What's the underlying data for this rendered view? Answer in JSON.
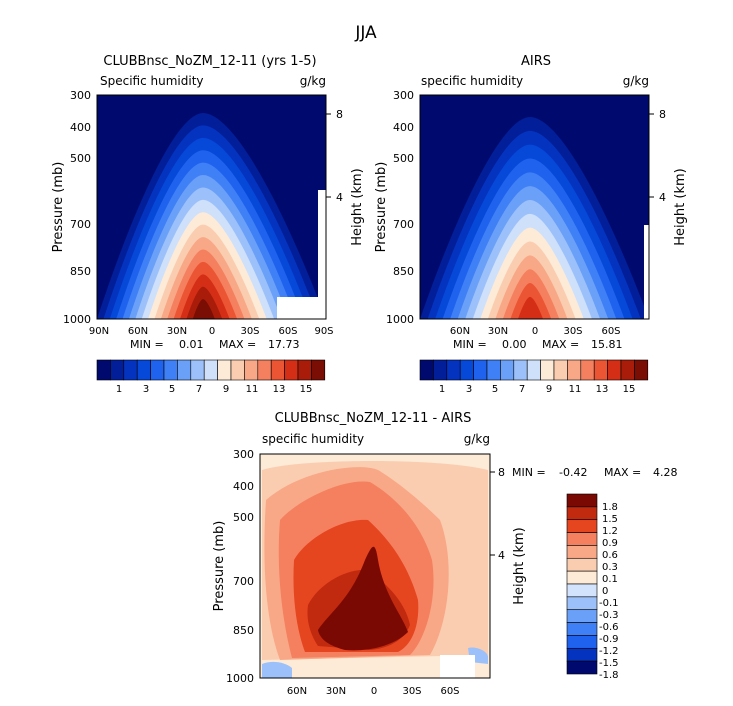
{
  "page": {
    "title": "JJA"
  },
  "colors": {
    "abs_scale": [
      "#000a6e",
      "#021e98",
      "#0433bf",
      "#0648d8",
      "#1f62ee",
      "#3f80f6",
      "#6ba0f8",
      "#9cc1fa",
      "#cfe0fb",
      "#fdebd7",
      "#fbcdb0",
      "#f8a886",
      "#f4805f",
      "#ec5534",
      "#d42f16",
      "#a91c0a",
      "#7a0d04"
    ],
    "diff_scale": [
      "#000a6e",
      "#0433bf",
      "#1f62ee",
      "#3f80f6",
      "#6ba0f8",
      "#9cc1fa",
      "#d2e3fb",
      "#fdebd7",
      "#fbcdb0",
      "#f8a886",
      "#f4805f",
      "#e5451f",
      "#c12a0e",
      "#7a0904"
    ]
  },
  "chart_data": [
    {
      "type": "heatmap",
      "title": "CLUBBnsc_NoZM_12-11 (yrs 1-5)",
      "subtitle_left": "Specific humidity",
      "units": "g/kg",
      "ylabel": "Pressure (mb)",
      "ylabel_right": "Height (km)",
      "x_ticks": [
        "90N",
        "60N",
        "30N",
        "0",
        "30S",
        "60S",
        "90S"
      ],
      "y_ticks": [
        "300",
        "400",
        "500",
        "700",
        "850",
        "1000"
      ],
      "height_ticks": [
        "8",
        "4"
      ],
      "min_label": "MIN =",
      "min_value": "0.01",
      "max_label": "MAX =",
      "max_value": "17.73",
      "colorbar_labels": [
        "1",
        "3",
        "5",
        "7",
        "9",
        "11",
        "13",
        "15"
      ]
    },
    {
      "type": "heatmap",
      "title": "AIRS",
      "subtitle_left": "specific humidity",
      "units": "g/kg",
      "ylabel": "Pressure (mb)",
      "ylabel_right": "Height (km)",
      "x_ticks": [
        "60N",
        "30N",
        "0",
        "30S",
        "60S"
      ],
      "y_ticks": [
        "300",
        "400",
        "500",
        "700",
        "850",
        "1000"
      ],
      "height_ticks": [
        "8",
        "4"
      ],
      "min_label": "MIN =",
      "min_value": "0.00",
      "max_label": "MAX =",
      "max_value": "15.81",
      "colorbar_labels": [
        "1",
        "3",
        "5",
        "7",
        "9",
        "11",
        "13",
        "15"
      ]
    },
    {
      "type": "heatmap",
      "title": "CLUBBnsc_NoZM_12-11 - AIRS",
      "subtitle_left": "specific humidity",
      "units": "g/kg",
      "ylabel": "Pressure (mb)",
      "ylabel_right": "Height (km)",
      "x_ticks": [
        "60N",
        "30N",
        "0",
        "30S",
        "60S"
      ],
      "y_ticks": [
        "300",
        "400",
        "500",
        "700",
        "850",
        "1000"
      ],
      "height_ticks": [
        "8",
        "4"
      ],
      "min_label": "MIN =",
      "min_value": "-0.42",
      "max_label": "MAX =",
      "max_value": "4.28",
      "colorbar_labels": [
        "1.8",
        "1.5",
        "1.2",
        "0.9",
        "0.6",
        "0.3",
        "0.1",
        "0",
        "-0.1",
        "-0.3",
        "-0.6",
        "-0.9",
        "-1.2",
        "-1.5",
        "-1.8"
      ]
    }
  ]
}
